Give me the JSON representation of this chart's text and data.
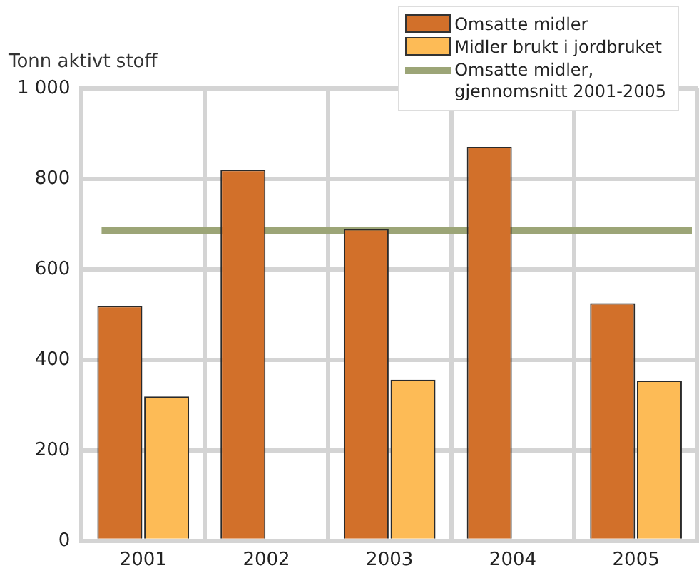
{
  "chart_data": {
    "type": "bar",
    "ylabel": "Tonn aktivt stoff",
    "categories": [
      "2001",
      "2002",
      "2003",
      "2004",
      "2005"
    ],
    "series": [
      {
        "name": "Omsatte midler",
        "color": "#d2702a",
        "values": [
          519,
          820,
          689,
          871,
          525
        ]
      },
      {
        "name": "Midler brukt i jordbruket",
        "color": "#fdbb56",
        "values": [
          319,
          null,
          356,
          null,
          354
        ]
      }
    ],
    "ylim": [
      0,
      1000
    ],
    "yticks": [
      0,
      200,
      400,
      600,
      800,
      {
        "value": 1000,
        "label": "1 000"
      }
    ],
    "ref_lines": [
      {
        "axis": "y",
        "value": 685,
        "label": "Omsatte midler,\ngjennomsnitt 2001-2005",
        "color": "#9ca577"
      }
    ],
    "grid": true,
    "legend": "top right"
  }
}
